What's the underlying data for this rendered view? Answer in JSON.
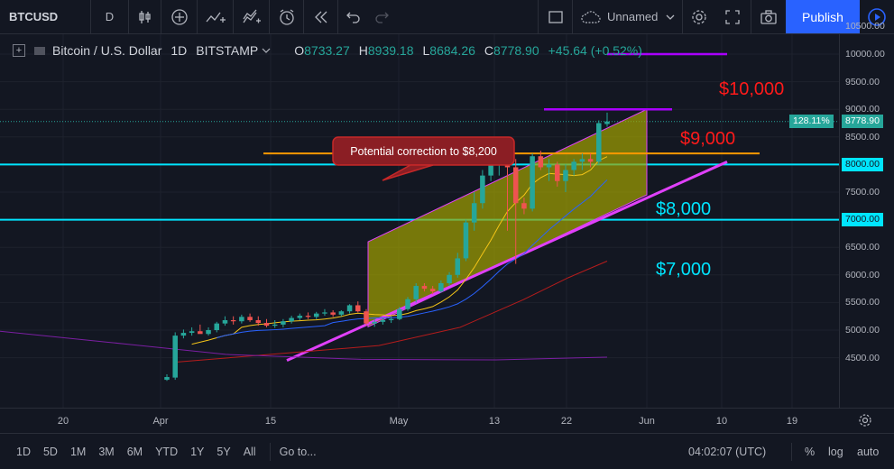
{
  "toolbar": {
    "symbol": "BTCUSD",
    "interval": "D",
    "layout_name": "Unnamed",
    "publish_label": "Publish"
  },
  "legend": {
    "title": "Bitcoin / U.S. Dollar",
    "interval": "1D",
    "exchange": "BITSTAMP",
    "open_key": "O",
    "open": "8733.27",
    "high_key": "H",
    "high": "8939.18",
    "low_key": "L",
    "low": "8684.26",
    "close_key": "C",
    "close": "8778.90",
    "change": "+45.64 (+0.52%)"
  },
  "price_axis": {
    "ticks": [
      "10500.00",
      "10000.00",
      "9500.00",
      "9000.00",
      "8500.00",
      "8000.00",
      "7500.00",
      "7000.00",
      "6500.00",
      "6000.00",
      "5500.00",
      "5000.00",
      "4500.00"
    ],
    "tick_values": [
      10500,
      10000,
      9500,
      9000,
      8500,
      8000,
      7500,
      7000,
      6500,
      6000,
      5500,
      5000,
      4500
    ],
    "last_price_label": "8778.90",
    "percent_label": "128.11%",
    "level_8000_label": "8000.00",
    "level_7000_label": "7000.00"
  },
  "time_axis": {
    "labels": [
      "20",
      "Apr",
      "15",
      "May",
      "13",
      "22",
      "Jun",
      "10",
      "19"
    ]
  },
  "annotations": {
    "callout": "Potential correction to $8,200",
    "label_10000": "$10,000",
    "label_9000": "$9,000",
    "label_8000": "$8,000",
    "label_7000": "$7,000"
  },
  "bottom_bar": {
    "ranges": [
      "1D",
      "5D",
      "1M",
      "3M",
      "6M",
      "YTD",
      "1Y",
      "5Y",
      "All"
    ],
    "goto": "Go to...",
    "clock": "04:02:07 (UTC)",
    "percent": "%",
    "log": "log",
    "auto": "auto"
  },
  "colors": {
    "up": "#26a69a",
    "down": "#ef5350",
    "cyan": "#00e5ff",
    "orange": "#ff9800",
    "magenta": "#e040fb",
    "purple": "#aa00ff",
    "red_text": "#ff1a1a",
    "channel_fill": "#a3a300"
  },
  "chart_data": {
    "type": "candlestick",
    "candles": [
      [
        4100,
        4200,
        4080,
        4150
      ],
      [
        4140,
        4960,
        4100,
        4900
      ],
      [
        4900,
        5010,
        4850,
        4950
      ],
      [
        4950,
        5050,
        4900,
        4980
      ],
      [
        4980,
        5100,
        4950,
        4930
      ],
      [
        4930,
        5050,
        4900,
        5000
      ],
      [
        5000,
        5150,
        4960,
        5120
      ],
      [
        5120,
        5250,
        5080,
        5180
      ],
      [
        5180,
        5250,
        5100,
        5160
      ],
      [
        5160,
        5280,
        5120,
        5240
      ],
      [
        5240,
        5300,
        5150,
        5180
      ],
      [
        5180,
        5250,
        5080,
        5130
      ],
      [
        5130,
        5200,
        5050,
        5080
      ],
      [
        5080,
        5180,
        5040,
        5100
      ],
      [
        5100,
        5200,
        5050,
        5160
      ],
      [
        5160,
        5260,
        5120,
        5220
      ],
      [
        5220,
        5300,
        5180,
        5260
      ],
      [
        5260,
        5320,
        5200,
        5240
      ],
      [
        5240,
        5330,
        5200,
        5300
      ],
      [
        5300,
        5380,
        5260,
        5320
      ],
      [
        5320,
        5360,
        5240,
        5280
      ],
      [
        5280,
        5360,
        5250,
        5340
      ],
      [
        5340,
        5470,
        5300,
        5450
      ],
      [
        5450,
        5520,
        5320,
        5340
      ],
      [
        5340,
        5380,
        5080,
        5120
      ],
      [
        5120,
        5200,
        5060,
        5150
      ],
      [
        5150,
        5220,
        5100,
        5180
      ],
      [
        5180,
        5250,
        5130,
        5200
      ],
      [
        5200,
        5420,
        5180,
        5380
      ],
      [
        5380,
        5600,
        5350,
        5560
      ],
      [
        5560,
        5850,
        5500,
        5800
      ],
      [
        5800,
        5850,
        5700,
        5750
      ],
      [
        5750,
        5800,
        5650,
        5700
      ],
      [
        5700,
        5900,
        5680,
        5850
      ],
      [
        5850,
        6050,
        5800,
        6000
      ],
      [
        6000,
        6400,
        5950,
        6300
      ],
      [
        6300,
        7000,
        6250,
        6950
      ],
      [
        6950,
        7500,
        6800,
        7300
      ],
      [
        7300,
        7900,
        7200,
        7800
      ],
      [
        7800,
        8300,
        7700,
        8000
      ],
      [
        8000,
        8300,
        7800,
        8200
      ],
      [
        8200,
        8300,
        6800,
        7950
      ],
      [
        7950,
        8100,
        6200,
        7300
      ],
      [
        7300,
        7400,
        7100,
        7200
      ],
      [
        7200,
        8200,
        7150,
        8150
      ],
      [
        8150,
        8250,
        7900,
        7950
      ],
      [
        7950,
        8100,
        7700,
        8000
      ],
      [
        8000,
        8050,
        7600,
        7700
      ],
      [
        7700,
        8000,
        7500,
        7900
      ],
      [
        7900,
        8100,
        7800,
        8050
      ],
      [
        8050,
        8200,
        7900,
        8100
      ],
      [
        8100,
        8200,
        7950,
        8050
      ],
      [
        8050,
        8800,
        8000,
        8750
      ],
      [
        8733.27,
        8939.18,
        8684.26,
        8778.9
      ]
    ]
  }
}
